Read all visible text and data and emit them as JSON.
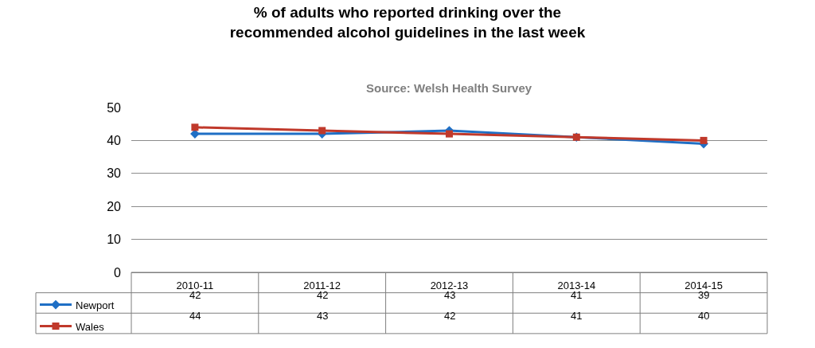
{
  "chart_data": {
    "type": "line",
    "title": "% of adults who reported drinking over the recommended alcohol guidelines in the last week",
    "annotations": [
      "Source: Welsh Health Survey"
    ],
    "categories": [
      "2010-11",
      "2011-12",
      "2012-13",
      "2013-14",
      "2014-15"
    ],
    "series": [
      {
        "name": "Newport",
        "color": "#1f6fc5",
        "marker": "diamond",
        "values": [
          42,
          42,
          43,
          41,
          39
        ]
      },
      {
        "name": "Wales",
        "color": "#c0392b",
        "marker": "square",
        "values": [
          44,
          43,
          42,
          41,
          40
        ]
      }
    ],
    "ylim": [
      0,
      50
    ],
    "yticks": [
      0,
      10,
      20,
      30,
      40,
      50
    ],
    "grid": "y",
    "legend": "bottom",
    "data_labels": true,
    "line_style": "solid"
  }
}
